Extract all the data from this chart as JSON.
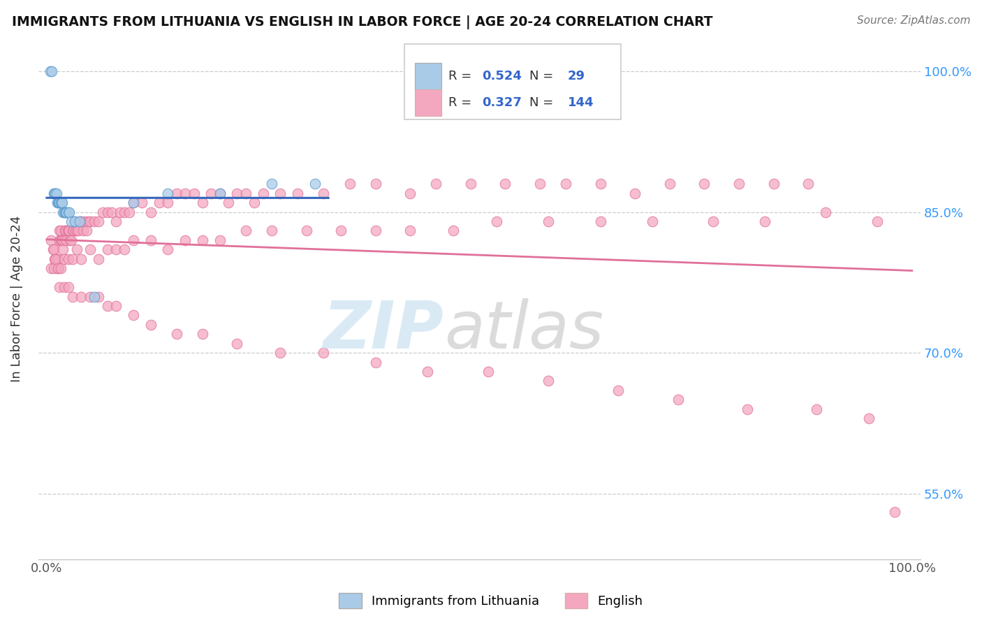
{
  "title": "IMMIGRANTS FROM LITHUANIA VS ENGLISH IN LABOR FORCE | AGE 20-24 CORRELATION CHART",
  "source": "Source: ZipAtlas.com",
  "ylabel": "In Labor Force | Age 20-24",
  "legend_label1": "Immigrants from Lithuania",
  "legend_label2": "English",
  "R1": 0.524,
  "N1": 29,
  "R2": 0.327,
  "N2": 144,
  "blue_color": "#aacbe8",
  "blue_edge_color": "#5599cc",
  "blue_line_color": "#3366bb",
  "pink_color": "#f4a8c0",
  "pink_edge_color": "#e0709a",
  "pink_line_color": "#e0709a",
  "blue_x": [
    0.004,
    0.006,
    0.008,
    0.009,
    0.01,
    0.011,
    0.012,
    0.013,
    0.014,
    0.015,
    0.016,
    0.017,
    0.018,
    0.019,
    0.02,
    0.021,
    0.022,
    0.023,
    0.025,
    0.026,
    0.028,
    0.032,
    0.038,
    0.055,
    0.1,
    0.14,
    0.2,
    0.26,
    0.31
  ],
  "blue_y": [
    1.0,
    1.0,
    0.87,
    0.87,
    0.87,
    0.87,
    0.86,
    0.86,
    0.86,
    0.86,
    0.86,
    0.86,
    0.86,
    0.85,
    0.85,
    0.85,
    0.85,
    0.85,
    0.85,
    0.85,
    0.84,
    0.84,
    0.84,
    0.76,
    0.86,
    0.87,
    0.87,
    0.88,
    0.88
  ],
  "pink_x": [
    0.005,
    0.007,
    0.008,
    0.009,
    0.01,
    0.011,
    0.012,
    0.013,
    0.014,
    0.015,
    0.015,
    0.016,
    0.016,
    0.017,
    0.018,
    0.019,
    0.02,
    0.021,
    0.022,
    0.023,
    0.024,
    0.025,
    0.026,
    0.027,
    0.028,
    0.03,
    0.031,
    0.032,
    0.033,
    0.035,
    0.036,
    0.038,
    0.04,
    0.042,
    0.044,
    0.046,
    0.048,
    0.05,
    0.055,
    0.06,
    0.065,
    0.07,
    0.075,
    0.08,
    0.085,
    0.09,
    0.095,
    0.1,
    0.11,
    0.12,
    0.13,
    0.14,
    0.15,
    0.16,
    0.17,
    0.18,
    0.19,
    0.2,
    0.21,
    0.22,
    0.23,
    0.24,
    0.25,
    0.27,
    0.29,
    0.32,
    0.35,
    0.38,
    0.42,
    0.45,
    0.49,
    0.53,
    0.57,
    0.6,
    0.64,
    0.68,
    0.72,
    0.76,
    0.8,
    0.84,
    0.88,
    0.005,
    0.008,
    0.01,
    0.013,
    0.016,
    0.02,
    0.025,
    0.03,
    0.035,
    0.04,
    0.05,
    0.06,
    0.07,
    0.08,
    0.09,
    0.1,
    0.12,
    0.14,
    0.16,
    0.18,
    0.2,
    0.23,
    0.26,
    0.3,
    0.34,
    0.38,
    0.42,
    0.47,
    0.52,
    0.58,
    0.64,
    0.7,
    0.77,
    0.83,
    0.9,
    0.96,
    0.015,
    0.02,
    0.025,
    0.03,
    0.04,
    0.05,
    0.06,
    0.07,
    0.08,
    0.1,
    0.12,
    0.15,
    0.18,
    0.22,
    0.27,
    0.32,
    0.38,
    0.44,
    0.51,
    0.58,
    0.66,
    0.73,
    0.81,
    0.89,
    0.95,
    0.98
  ],
  "pink_y": [
    0.82,
    0.81,
    0.81,
    0.8,
    0.8,
    0.79,
    0.8,
    0.8,
    0.79,
    0.83,
    0.82,
    0.83,
    0.82,
    0.82,
    0.82,
    0.81,
    0.82,
    0.83,
    0.83,
    0.82,
    0.83,
    0.83,
    0.83,
    0.82,
    0.82,
    0.83,
    0.83,
    0.84,
    0.83,
    0.83,
    0.83,
    0.84,
    0.84,
    0.83,
    0.84,
    0.83,
    0.84,
    0.84,
    0.84,
    0.84,
    0.85,
    0.85,
    0.85,
    0.84,
    0.85,
    0.85,
    0.85,
    0.86,
    0.86,
    0.85,
    0.86,
    0.86,
    0.87,
    0.87,
    0.87,
    0.86,
    0.87,
    0.87,
    0.86,
    0.87,
    0.87,
    0.86,
    0.87,
    0.87,
    0.87,
    0.87,
    0.88,
    0.88,
    0.87,
    0.88,
    0.88,
    0.88,
    0.88,
    0.88,
    0.88,
    0.87,
    0.88,
    0.88,
    0.88,
    0.88,
    0.88,
    0.79,
    0.79,
    0.8,
    0.79,
    0.79,
    0.8,
    0.8,
    0.8,
    0.81,
    0.8,
    0.81,
    0.8,
    0.81,
    0.81,
    0.81,
    0.82,
    0.82,
    0.81,
    0.82,
    0.82,
    0.82,
    0.83,
    0.83,
    0.83,
    0.83,
    0.83,
    0.83,
    0.83,
    0.84,
    0.84,
    0.84,
    0.84,
    0.84,
    0.84,
    0.85,
    0.84,
    0.77,
    0.77,
    0.77,
    0.76,
    0.76,
    0.76,
    0.76,
    0.75,
    0.75,
    0.74,
    0.73,
    0.72,
    0.72,
    0.71,
    0.7,
    0.7,
    0.69,
    0.68,
    0.68,
    0.67,
    0.66,
    0.65,
    0.64,
    0.64,
    0.63,
    0.53
  ]
}
